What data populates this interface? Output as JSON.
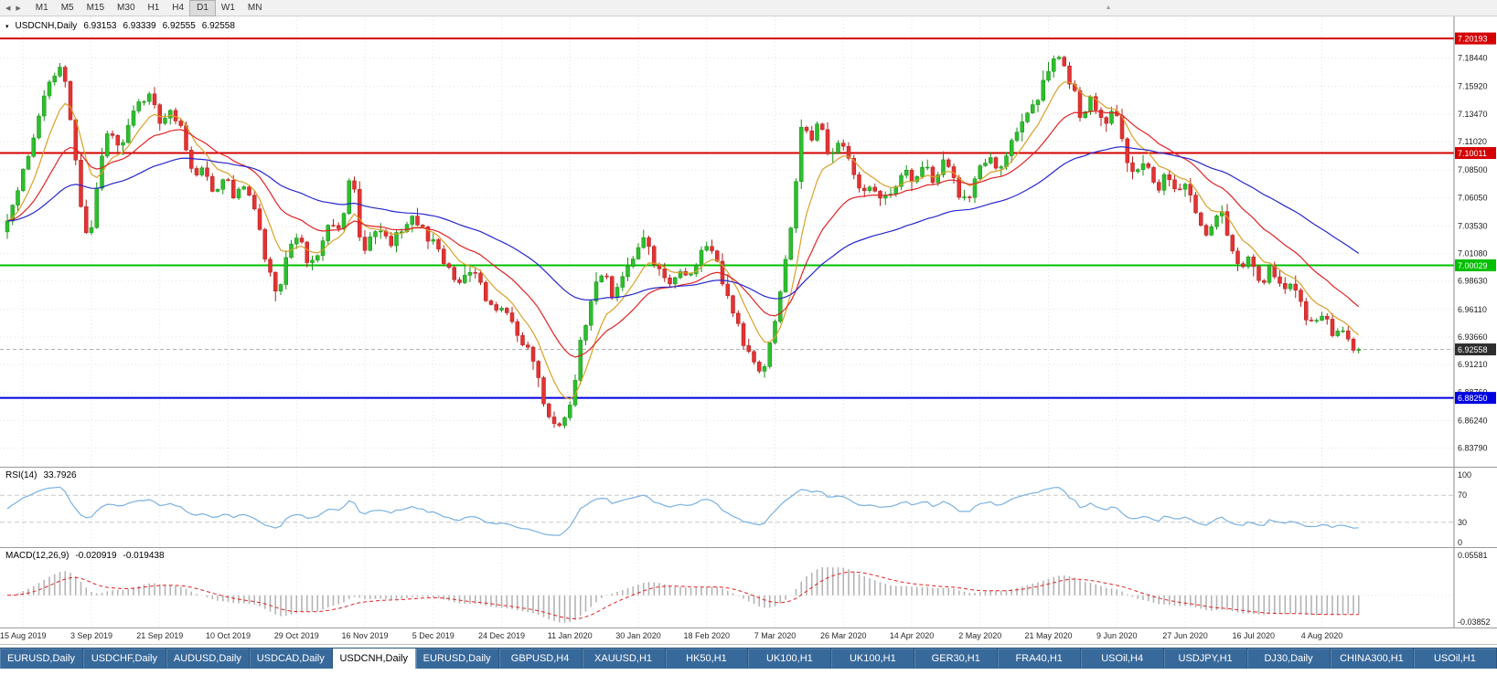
{
  "icons": {
    "collapse": "▾",
    "scroll_left": "◀",
    "scroll_right": "▶",
    "overflow": "▴"
  },
  "toolbar": {
    "timeframes": [
      {
        "label": "M1"
      },
      {
        "label": "M5"
      },
      {
        "label": "M15"
      },
      {
        "label": "M30"
      },
      {
        "label": "H1"
      },
      {
        "label": "H4"
      },
      {
        "label": "D1"
      },
      {
        "label": "W1"
      },
      {
        "label": "MN"
      }
    ],
    "active_timeframe": "D1"
  },
  "chart": {
    "symbol_title": "USDCNH,Daily",
    "ohlc": {
      "open": "6.93153",
      "high": "6.93339",
      "low": "6.92555",
      "close": "6.92558"
    }
  },
  "indicators": {
    "rsi": {
      "label": "RSI(14)",
      "value": "33.7926",
      "axis_labels": [
        "100",
        "70",
        "30",
        "0"
      ],
      "levels": [
        70,
        30
      ]
    },
    "macd": {
      "label": "MACD(12,26,9)",
      "main_value": "-0.020919",
      "signal_value": "-0.019438",
      "axis_top": "0.05581",
      "axis_bottom": "-0.03852"
    }
  },
  "chart_data": {
    "type": "candlestick",
    "title": "USDCNH,Daily",
    "symbol": "USDCNH",
    "timeframe": "Daily",
    "candle_count": 258,
    "ohlc_current": {
      "open": 6.93153,
      "high": 6.93339,
      "low": 6.92555,
      "close": 6.92558
    },
    "price_range": {
      "min": 6.827,
      "max": 7.215
    },
    "price_ticks": [
      "7.18440",
      "7.15920",
      "7.13470",
      "7.11020",
      "7.08500",
      "7.06050",
      "7.03530",
      "7.01080",
      "6.98630",
      "6.96110",
      "6.93660",
      "6.91210",
      "6.88760",
      "6.86240",
      "6.83790"
    ],
    "date_labels": [
      "15 Aug 2019",
      "3 Sep 2019",
      "21 Sep 2019",
      "10 Oct 2019",
      "29 Oct 2019",
      "16 Nov 2019",
      "5 Dec 2019",
      "24 Dec 2019",
      "11 Jan 2020",
      "30 Jan 2020",
      "18 Feb 2020",
      "7 Mar 2020",
      "26 Mar 2020",
      "14 Apr 2020",
      "2 May 2020",
      "21 May 2020",
      "9 Jun 2020",
      "27 Jun 2020",
      "16 Jul 2020",
      "4 Aug 2020"
    ],
    "horizontal_lines": [
      {
        "price": 7.20193,
        "label": "7.20193",
        "color": "#d40000"
      },
      {
        "price": 7.10011,
        "label": "7.10011",
        "color": "#d40000"
      },
      {
        "price": 7.00029,
        "label": "7.00029",
        "color": "#00c000"
      },
      {
        "price": 6.8825,
        "label": "6.88250",
        "color": "#0000e0"
      }
    ],
    "current_price": {
      "value": 6.92558,
      "label": "6.92558",
      "color": "#2e2e2e"
    },
    "candle_colors": {
      "up": "#2ebe2e",
      "up_border": "#169016",
      "down": "#e23333",
      "down_border": "#b51f1f"
    },
    "moving_averages": [
      {
        "name": "ma-fast",
        "period": 8,
        "color": "#d9a028"
      },
      {
        "name": "ma-mid",
        "period": 21,
        "color": "#e02222"
      },
      {
        "name": "ma-slow",
        "period": 55,
        "color": "#2626cc"
      }
    ],
    "rsi_color": "#79b1e1",
    "macd_histogram_color": "#b4b4b4",
    "macd_signal_color": "#e02222",
    "price_path_anchors": [
      [
        0,
        7.03
      ],
      [
        3,
        7.075
      ],
      [
        6,
        7.125
      ],
      [
        9,
        7.165
      ],
      [
        11,
        7.185
      ],
      [
        13,
        7.115
      ],
      [
        15,
        7.04
      ],
      [
        16,
        7.015
      ],
      [
        18,
        7.085
      ],
      [
        20,
        7.12
      ],
      [
        22,
        7.105
      ],
      [
        25,
        7.14
      ],
      [
        28,
        7.15
      ],
      [
        30,
        7.125
      ],
      [
        32,
        7.14
      ],
      [
        34,
        7.115
      ],
      [
        36,
        7.075
      ],
      [
        38,
        7.09
      ],
      [
        40,
        7.065
      ],
      [
        42,
        7.085
      ],
      [
        44,
        7.06
      ],
      [
        46,
        7.075
      ],
      [
        48,
        7.04
      ],
      [
        50,
        7.0
      ],
      [
        52,
        6.975
      ],
      [
        54,
        7.01
      ],
      [
        56,
        7.025
      ],
      [
        58,
        6.995
      ],
      [
        60,
        7.015
      ],
      [
        62,
        7.035
      ],
      [
        64,
        7.03
      ],
      [
        66,
        7.088
      ],
      [
        68,
        7.01
      ],
      [
        71,
        7.035
      ],
      [
        74,
        7.02
      ],
      [
        77,
        7.045
      ],
      [
        80,
        7.03
      ],
      [
        83,
        7.01
      ],
      [
        86,
        6.985
      ],
      [
        89,
        6.995
      ],
      [
        92,
        6.97
      ],
      [
        95,
        6.96
      ],
      [
        98,
        6.935
      ],
      [
        100,
        6.92
      ],
      [
        102,
        6.89
      ],
      [
        104,
        6.862
      ],
      [
        106,
        6.852
      ],
      [
        108,
        6.885
      ],
      [
        110,
        6.94
      ],
      [
        112,
        6.975
      ],
      [
        114,
        6.995
      ],
      [
        116,
        6.97
      ],
      [
        118,
        6.99
      ],
      [
        120,
        7.01
      ],
      [
        122,
        7.025
      ],
      [
        124,
        7.0
      ],
      [
        126,
        6.985
      ],
      [
        128,
        6.995
      ],
      [
        130,
        6.985
      ],
      [
        132,
        7.005
      ],
      [
        134,
        7.02
      ],
      [
        136,
        6.995
      ],
      [
        138,
        6.965
      ],
      [
        140,
        6.94
      ],
      [
        142,
        6.915
      ],
      [
        144,
        6.9
      ],
      [
        146,
        6.935
      ],
      [
        148,
        6.985
      ],
      [
        150,
        7.045
      ],
      [
        152,
        7.14
      ],
      [
        153,
        7.105
      ],
      [
        155,
        7.125
      ],
      [
        157,
        7.095
      ],
      [
        159,
        7.115
      ],
      [
        161,
        7.09
      ],
      [
        163,
        7.06
      ],
      [
        165,
        7.075
      ],
      [
        167,
        7.055
      ],
      [
        169,
        7.065
      ],
      [
        171,
        7.085
      ],
      [
        173,
        7.07
      ],
      [
        175,
        7.09
      ],
      [
        177,
        7.075
      ],
      [
        179,
        7.095
      ],
      [
        181,
        7.07
      ],
      [
        183,
        7.055
      ],
      [
        185,
        7.08
      ],
      [
        187,
        7.1
      ],
      [
        189,
        7.085
      ],
      [
        191,
        7.105
      ],
      [
        193,
        7.125
      ],
      [
        195,
        7.135
      ],
      [
        197,
        7.155
      ],
      [
        199,
        7.175
      ],
      [
        201,
        7.19
      ],
      [
        203,
        7.16
      ],
      [
        205,
        7.13
      ],
      [
        207,
        7.15
      ],
      [
        209,
        7.125
      ],
      [
        211,
        7.14
      ],
      [
        213,
        7.105
      ],
      [
        215,
        7.075
      ],
      [
        217,
        7.095
      ],
      [
        219,
        7.065
      ],
      [
        221,
        7.08
      ],
      [
        223,
        7.06
      ],
      [
        225,
        7.075
      ],
      [
        227,
        7.045
      ],
      [
        229,
        7.025
      ],
      [
        231,
        7.055
      ],
      [
        233,
        7.02
      ],
      [
        235,
        6.995
      ],
      [
        237,
        7.01
      ],
      [
        239,
        6.985
      ],
      [
        241,
        7.0
      ],
      [
        243,
        6.975
      ],
      [
        245,
        6.985
      ],
      [
        247,
        6.96
      ],
      [
        249,
        6.945
      ],
      [
        251,
        6.955
      ],
      [
        253,
        6.935
      ],
      [
        255,
        6.945
      ],
      [
        257,
        6.9256
      ]
    ]
  },
  "tabs": {
    "active_index": 4,
    "items": [
      {
        "label": "EURUSD,Daily"
      },
      {
        "label": "USDCHF,Daily"
      },
      {
        "label": "AUDUSD,Daily"
      },
      {
        "label": "USDCAD,Daily"
      },
      {
        "label": "USDCNH,Daily"
      },
      {
        "label": "EURUSD,Daily"
      },
      {
        "label": "GBPUSD,H4"
      },
      {
        "label": "XAUUSD,H1"
      },
      {
        "label": "HK50,H1"
      },
      {
        "label": "UK100,H1"
      },
      {
        "label": "UK100,H1"
      },
      {
        "label": "GER30,H1"
      },
      {
        "label": "FRA40,H1"
      },
      {
        "label": "USOil,H4"
      },
      {
        "label": "USDJPY,H1"
      },
      {
        "label": "DJ30,Daily"
      },
      {
        "label": "CHINA300,H1"
      },
      {
        "label": "USOil,H1"
      }
    ]
  }
}
